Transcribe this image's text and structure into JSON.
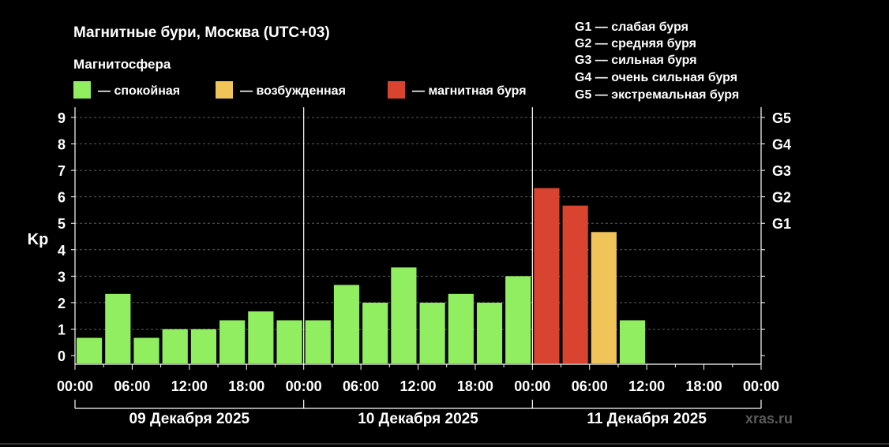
{
  "title": "Магнитные бури, Москва (UTC+03)",
  "legend_title": "Магнитосфера",
  "legend": [
    {
      "color": "#90ee60",
      "label": "— спокойная"
    },
    {
      "color": "#f0c458",
      "label": "— возбужденная"
    },
    {
      "color": "#d84430",
      "label": "— магнитная буря"
    }
  ],
  "g_scale": [
    "G1 — слабая буря",
    "G2 — средняя буря",
    "G3 — сильная буря",
    "G4 — очень сильная буря",
    "G5 — экстремальная буря"
  ],
  "watermark": "xras.ru",
  "chart_data": {
    "type": "bar",
    "ylabel": "Kp",
    "ylim": [
      0,
      9
    ],
    "yticks": [
      "0",
      "1",
      "2",
      "3",
      "4",
      "5",
      "6",
      "7",
      "8",
      "9"
    ],
    "right_ticks": [
      {
        "label": "G1",
        "value": 5
      },
      {
        "label": "G2",
        "value": 6
      },
      {
        "label": "G3",
        "value": 7
      },
      {
        "label": "G4",
        "value": 8
      },
      {
        "label": "G5",
        "value": 9
      }
    ],
    "xticks": [
      "00:00",
      "06:00",
      "12:00",
      "18:00",
      "00:00",
      "06:00",
      "12:00",
      "18:00",
      "00:00",
      "06:00",
      "12:00",
      "18:00",
      "00:00"
    ],
    "days": [
      "09 Декабря 2025",
      "10 Декабря 2025",
      "11 Декабря 2025"
    ],
    "grid": true,
    "interval_hours": 3,
    "values": [
      0.67,
      2.33,
      0.67,
      1.0,
      1.0,
      1.33,
      1.67,
      1.33,
      1.33,
      2.67,
      2.0,
      3.33,
      2.0,
      2.33,
      2.0,
      3.0,
      6.33,
      5.67,
      4.67,
      1.33
    ],
    "levels": [
      "quiet",
      "quiet",
      "quiet",
      "quiet",
      "quiet",
      "quiet",
      "quiet",
      "quiet",
      "quiet",
      "quiet",
      "quiet",
      "quiet",
      "quiet",
      "quiet",
      "quiet",
      "quiet",
      "storm",
      "storm",
      "active",
      "quiet"
    ],
    "level_colors": {
      "quiet": "#90ee60",
      "active": "#f0c458",
      "storm": "#d84430"
    }
  }
}
